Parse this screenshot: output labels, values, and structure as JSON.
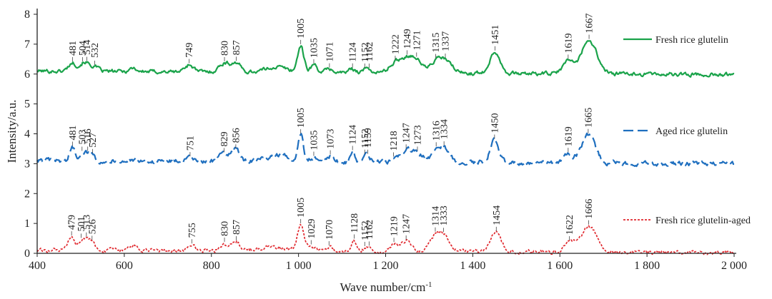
{
  "chart_data": {
    "type": "line",
    "title": "",
    "xlabel": "Wave number/cm",
    "xlabel_superscript": "-1",
    "ylabel": "Intensity/a.u.",
    "xlim": [
      400,
      2000
    ],
    "ylim": [
      0,
      8
    ],
    "x_ticks": [
      400,
      600,
      800,
      1000,
      1200,
      1400,
      1600,
      1800,
      2000
    ],
    "x_tick_labels": [
      "400",
      "600",
      "800",
      "1 000",
      "1 200",
      "1 400",
      "1 600",
      "1 800",
      "2 000"
    ],
    "y_ticks": [
      0,
      1,
      2,
      3,
      4,
      5,
      6,
      7,
      8
    ],
    "y_tick_labels": [
      "0",
      "1",
      "2",
      "3",
      "4",
      "5",
      "6",
      "7",
      "8"
    ],
    "grid": false,
    "legend_placement": "right",
    "series": [
      {
        "name": "Fresh rice glutelin",
        "color": "#1aa34a",
        "line_style": "solid",
        "baseline": 6.1,
        "end_value": 5.98,
        "noise": 0.05,
        "bumps": [
          {
            "x": 481,
            "h": 0.28,
            "w": 9
          },
          {
            "x": 504,
            "h": 0.18,
            "w": 8
          },
          {
            "x": 514,
            "h": 0.2,
            "w": 8
          },
          {
            "x": 532,
            "h": 0.15,
            "w": 8
          },
          {
            "x": 620,
            "h": 0.12,
            "w": 8
          },
          {
            "x": 749,
            "h": 0.24,
            "w": 10
          },
          {
            "x": 830,
            "h": 0.3,
            "w": 12
          },
          {
            "x": 857,
            "h": 0.3,
            "w": 10
          },
          {
            "x": 950,
            "h": 0.18,
            "w": 25
          },
          {
            "x": 1005,
            "h": 0.88,
            "w": 7
          },
          {
            "x": 1035,
            "h": 0.25,
            "w": 8
          },
          {
            "x": 1071,
            "h": 0.12,
            "w": 8
          },
          {
            "x": 1124,
            "h": 0.12,
            "w": 8
          },
          {
            "x": 1152,
            "h": 0.08,
            "w": 8
          },
          {
            "x": 1162,
            "h": 0.08,
            "w": 8
          },
          {
            "x": 1222,
            "h": 0.3,
            "w": 14
          },
          {
            "x": 1249,
            "h": 0.42,
            "w": 15
          },
          {
            "x": 1271,
            "h": 0.35,
            "w": 14
          },
          {
            "x": 1315,
            "h": 0.3,
            "w": 14
          },
          {
            "x": 1337,
            "h": 0.38,
            "w": 16
          },
          {
            "x": 1451,
            "h": 0.72,
            "w": 12
          },
          {
            "x": 1619,
            "h": 0.42,
            "w": 12
          },
          {
            "x": 1667,
            "h": 1.12,
            "w": 18
          }
        ],
        "peaks": [
          {
            "x": 481,
            "label": "481"
          },
          {
            "x": 504,
            "label": "504"
          },
          {
            "x": 514,
            "label": "514"
          },
          {
            "x": 532,
            "label": "532"
          },
          {
            "x": 749,
            "label": "749"
          },
          {
            "x": 830,
            "label": "830"
          },
          {
            "x": 857,
            "label": "857"
          },
          {
            "x": 1005,
            "label": "1005"
          },
          {
            "x": 1035,
            "label": "1035"
          },
          {
            "x": 1071,
            "label": "1071"
          },
          {
            "x": 1124,
            "label": "1124"
          },
          {
            "x": 1152,
            "label": "1152"
          },
          {
            "x": 1162,
            "label": "1162"
          },
          {
            "x": 1222,
            "label": "1222"
          },
          {
            "x": 1249,
            "label": "1249"
          },
          {
            "x": 1271,
            "label": "1271"
          },
          {
            "x": 1315,
            "label": "1315"
          },
          {
            "x": 1337,
            "label": "1337"
          },
          {
            "x": 1451,
            "label": "1451"
          },
          {
            "x": 1619,
            "label": "1619"
          },
          {
            "x": 1667,
            "label": "1667"
          }
        ]
      },
      {
        "name": "Aged rice glutelin",
        "color": "#1f6fbf",
        "line_style": "dashed",
        "baseline": 3.1,
        "end_value": 3.0,
        "noise": 0.06,
        "bumps": [
          {
            "x": 481,
            "h": 0.45,
            "w": 6
          },
          {
            "x": 503,
            "h": 0.25,
            "w": 7
          },
          {
            "x": 516,
            "h": 0.2,
            "w": 7
          },
          {
            "x": 527,
            "h": 0.15,
            "w": 7
          },
          {
            "x": 751,
            "h": 0.12,
            "w": 8
          },
          {
            "x": 829,
            "h": 0.25,
            "w": 10
          },
          {
            "x": 856,
            "h": 0.38,
            "w": 10
          },
          {
            "x": 950,
            "h": 0.22,
            "w": 25
          },
          {
            "x": 1005,
            "h": 0.88,
            "w": 6
          },
          {
            "x": 1035,
            "h": 0.15,
            "w": 8
          },
          {
            "x": 1073,
            "h": 0.2,
            "w": 8
          },
          {
            "x": 1124,
            "h": 0.35,
            "w": 5
          },
          {
            "x": 1152,
            "h": 0.15,
            "w": 6
          },
          {
            "x": 1159,
            "h": 0.15,
            "w": 6
          },
          {
            "x": 1218,
            "h": 0.12,
            "w": 8
          },
          {
            "x": 1247,
            "h": 0.38,
            "w": 12
          },
          {
            "x": 1273,
            "h": 0.3,
            "w": 12
          },
          {
            "x": 1316,
            "h": 0.3,
            "w": 12
          },
          {
            "x": 1334,
            "h": 0.42,
            "w": 14
          },
          {
            "x": 1450,
            "h": 0.75,
            "w": 10
          },
          {
            "x": 1619,
            "h": 0.3,
            "w": 10
          },
          {
            "x": 1665,
            "h": 0.95,
            "w": 16
          }
        ],
        "peaks": [
          {
            "x": 481,
            "label": "481"
          },
          {
            "x": 503,
            "label": "503"
          },
          {
            "x": 516,
            "label": "516"
          },
          {
            "x": 527,
            "label": "527"
          },
          {
            "x": 751,
            "label": "751"
          },
          {
            "x": 829,
            "label": "829"
          },
          {
            "x": 856,
            "label": "856"
          },
          {
            "x": 1005,
            "label": "1005"
          },
          {
            "x": 1035,
            "label": "1035"
          },
          {
            "x": 1073,
            "label": "1073"
          },
          {
            "x": 1124,
            "label": "1124"
          },
          {
            "x": 1152,
            "label": "1152"
          },
          {
            "x": 1159,
            "label": "1159"
          },
          {
            "x": 1218,
            "label": "1218"
          },
          {
            "x": 1247,
            "label": "1247"
          },
          {
            "x": 1273,
            "label": "1273"
          },
          {
            "x": 1316,
            "label": "1316"
          },
          {
            "x": 1334,
            "label": "1334"
          },
          {
            "x": 1450,
            "label": "1450"
          },
          {
            "x": 1619,
            "label": "1619"
          },
          {
            "x": 1665,
            "label": "1665"
          }
        ]
      },
      {
        "name": "Fresh rice glutelin-aged",
        "color": "#e0282e",
        "line_style": "dotted",
        "baseline": 0.1,
        "end_value": 0.02,
        "noise": 0.05,
        "bumps": [
          {
            "x": 479,
            "h": 0.45,
            "w": 7
          },
          {
            "x": 501,
            "h": 0.3,
            "w": 7
          },
          {
            "x": 513,
            "h": 0.3,
            "w": 7
          },
          {
            "x": 526,
            "h": 0.25,
            "w": 7
          },
          {
            "x": 620,
            "h": 0.15,
            "w": 10
          },
          {
            "x": 755,
            "h": 0.2,
            "w": 8
          },
          {
            "x": 830,
            "h": 0.25,
            "w": 10
          },
          {
            "x": 857,
            "h": 0.3,
            "w": 10
          },
          {
            "x": 940,
            "h": 0.15,
            "w": 25
          },
          {
            "x": 1005,
            "h": 0.88,
            "w": 7
          },
          {
            "x": 1029,
            "h": 0.18,
            "w": 8
          },
          {
            "x": 1070,
            "h": 0.15,
            "w": 8
          },
          {
            "x": 1128,
            "h": 0.38,
            "w": 6
          },
          {
            "x": 1152,
            "h": 0.1,
            "w": 6
          },
          {
            "x": 1162,
            "h": 0.12,
            "w": 6
          },
          {
            "x": 1219,
            "h": 0.25,
            "w": 8
          },
          {
            "x": 1247,
            "h": 0.35,
            "w": 12
          },
          {
            "x": 1314,
            "h": 0.4,
            "w": 14
          },
          {
            "x": 1333,
            "h": 0.45,
            "w": 16
          },
          {
            "x": 1454,
            "h": 0.65,
            "w": 12
          },
          {
            "x": 1622,
            "h": 0.3,
            "w": 12
          },
          {
            "x": 1666,
            "h": 0.88,
            "w": 18
          }
        ],
        "peaks": [
          {
            "x": 479,
            "label": "479"
          },
          {
            "x": 501,
            "label": "501"
          },
          {
            "x": 513,
            "label": "513"
          },
          {
            "x": 526,
            "label": "526"
          },
          {
            "x": 755,
            "label": "755"
          },
          {
            "x": 830,
            "label": "830"
          },
          {
            "x": 857,
            "label": "857"
          },
          {
            "x": 1005,
            "label": "1005"
          },
          {
            "x": 1029,
            "label": "1029"
          },
          {
            "x": 1070,
            "label": "1070"
          },
          {
            "x": 1128,
            "label": "1128"
          },
          {
            "x": 1152,
            "label": "1152"
          },
          {
            "x": 1162,
            "label": "1162"
          },
          {
            "x": 1219,
            "label": "1219"
          },
          {
            "x": 1247,
            "label": "1247"
          },
          {
            "x": 1314,
            "label": "1314"
          },
          {
            "x": 1333,
            "label": "1333"
          },
          {
            "x": 1454,
            "label": "1454"
          },
          {
            "x": 1622,
            "label": "1622"
          },
          {
            "x": 1666,
            "label": "1666"
          }
        ]
      }
    ]
  }
}
